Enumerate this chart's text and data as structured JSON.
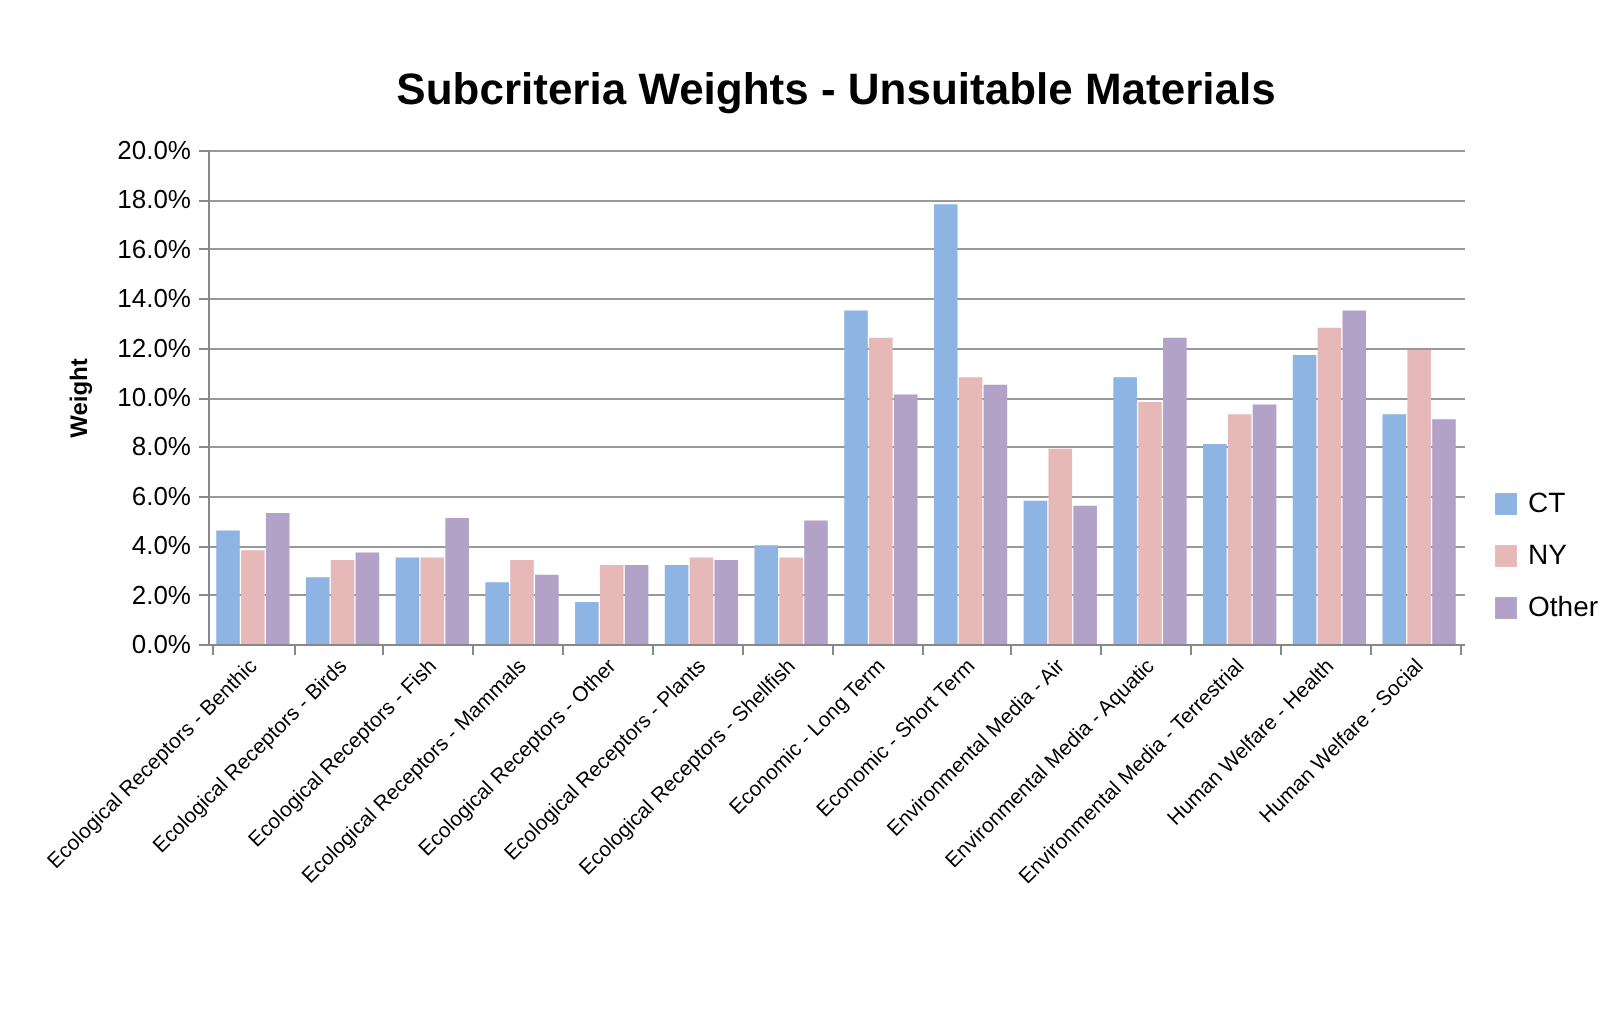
{
  "chart_data": {
    "type": "bar",
    "title": "Subcriteria Weights - Unsuitable Materials",
    "ylabel": "Weight",
    "categories": [
      "Ecological Receptors - Benthic",
      "Ecological Receptors - Birds",
      "Ecological Receptors - Fish",
      "Ecological Receptors - Mammals",
      "Ecological Receptors - Other",
      "Ecological Receptors - Plants",
      "Ecological Receptors - Shellfish",
      "Economic - Long Term",
      "Economic - Short Term",
      "Environmental Media - Air",
      "Environmental Media - Aquatic",
      "Environmental Media - Terrestrial",
      "Human Welfare - Health",
      "Human Welfare - Social"
    ],
    "series": [
      {
        "name": "CT",
        "color": "#8eb4e3",
        "values": [
          4.6,
          2.7,
          3.5,
          2.5,
          1.7,
          3.2,
          4.0,
          13.5,
          17.8,
          5.8,
          10.8,
          8.1,
          11.7,
          9.3
        ]
      },
      {
        "name": "NY",
        "color": "#e6b9b8",
        "values": [
          3.8,
          3.4,
          3.5,
          3.4,
          3.2,
          3.5,
          3.5,
          12.4,
          10.8,
          7.9,
          9.8,
          9.3,
          12.8,
          11.9
        ]
      },
      {
        "name": "Other",
        "color": "#b3a2c7",
        "values": [
          5.3,
          3.7,
          5.1,
          2.8,
          3.2,
          3.4,
          5.0,
          10.1,
          10.5,
          5.6,
          12.4,
          9.7,
          13.5,
          9.1
        ]
      }
    ],
    "ylim": [
      0,
      20
    ],
    "yticks": [
      {
        "value": 0,
        "label": "0.0%"
      },
      {
        "value": 2,
        "label": "2.0%"
      },
      {
        "value": 4,
        "label": "4.0%"
      },
      {
        "value": 6,
        "label": "6.0%"
      },
      {
        "value": 8,
        "label": "8.0%"
      },
      {
        "value": 10,
        "label": "10.0%"
      },
      {
        "value": 12,
        "label": "12.0%"
      },
      {
        "value": 14,
        "label": "14.0%"
      },
      {
        "value": 16,
        "label": "16.0%"
      },
      {
        "value": 18,
        "label": "18.0%"
      },
      {
        "value": 20,
        "label": "20.0%"
      }
    ],
    "grid": "y",
    "legend": "right"
  }
}
